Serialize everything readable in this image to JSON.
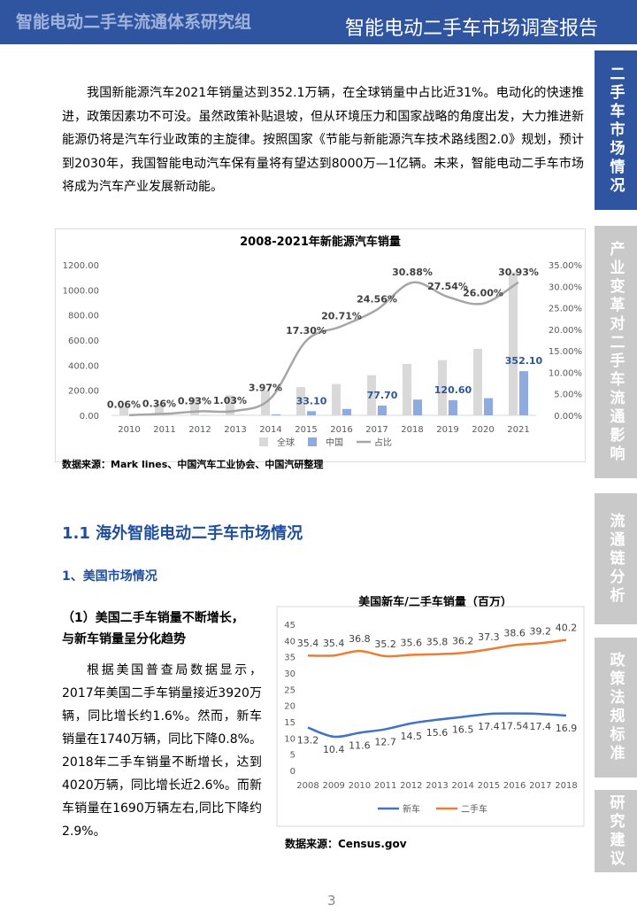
{
  "header": {
    "left": "智能电动二手车流通体系研究组",
    "right": "智能电动二手车市场调查报告"
  },
  "tabs": [
    "二手车市场情况",
    "产业变革对二手车流通影响",
    "流通链分析",
    "政策法规标准",
    "研究建议"
  ],
  "intro": "我国新能源汽车2021年销量达到352.1万辆，在全球销量中占比近31%。电动化的快速推进，政策因素功不可没。虽然政策补贴退坡，但从环境压力和国家战略的角度出发，大力推进新能源仍将是汽车行业政策的主旋律。按照国家《节能与新能源汽车技术路线图2.0》规划，预计到2030年，我国智能电动汽车保有量将有望达到8000万—1亿辆。未来，智能电动二手车市场将成为汽车产业发展新动能。",
  "source1": "数据来源：Mark lines、中国汽车工业协会、中国汽研整理",
  "section": "1.1 海外智能电动二手车市场情况",
  "subsection": "1、美国市场情况",
  "point": "（1）美国二手车销量不断增长，与新车销量呈分化趋势",
  "body": "根据美国普查局数据显示，2017年美国二手车销量接近3920万辆，同比增长约1.6%。然而，新车销量在1740万辆，同比下降0.8%。2018年二手车销量不断增长，达到4020万辆，同比增长近2.6%。而新车销量在1690万辆左右,同比下降约2.9%。",
  "source2": "数据来源：Census.gov",
  "page": "3",
  "chart_data": [
    {
      "type": "bar-line",
      "title": "2008-2021年新能源汽车销量",
      "categories": [
        "2010",
        "2011",
        "2012",
        "2013",
        "2014",
        "2015",
        "2016",
        "2017",
        "2018",
        "2019",
        "2020",
        "2021"
      ],
      "series": [
        {
          "name": "全球",
          "color": "#d9d9d9",
          "values": [
            70,
            90,
            140,
            160,
            200,
            225,
            250,
            320,
            410,
            440,
            530,
            1140
          ]
        },
        {
          "name": "中国",
          "color": "#8faadc",
          "values": [
            0.5,
            0.8,
            1.3,
            1.8,
            7.5,
            33.1,
            50.7,
            77.7,
            125.6,
            120.6,
            136.7,
            352.1
          ],
          "value_labels": [
            null,
            null,
            null,
            null,
            null,
            "33.10",
            null,
            "77.70",
            null,
            "120.60",
            null,
            "352.10"
          ]
        },
        {
          "name": "占比",
          "color": "#a6a6a6",
          "axis": "y2",
          "values": [
            0.06,
            0.36,
            0.93,
            1.03,
            3.97,
            17.3,
            20.71,
            24.56,
            30.88,
            27.54,
            26.0,
            30.93
          ],
          "value_labels": [
            "0.06%",
            "0.36%",
            "0.93%",
            "1.03%",
            "3.97%",
            "17.30%",
            "20.71%",
            "24.56%",
            "30.88%",
            "27.54%",
            "26.00%",
            "30.93%"
          ]
        }
      ],
      "ylim": [
        0,
        1200
      ],
      "yticks": [
        {
          "value": 0,
          "label": "0.00"
        },
        {
          "value": 200,
          "label": "200.00"
        },
        {
          "value": 400,
          "label": "400.00"
        },
        {
          "value": 600,
          "label": "600.00"
        },
        {
          "value": 800,
          "label": "800.00"
        },
        {
          "value": 1000,
          "label": "1000.00"
        },
        {
          "value": 1200,
          "label": "1200.00"
        }
      ],
      "y2lim": [
        0,
        35
      ],
      "y2ticks": [
        {
          "value": 0,
          "label": "0.00%"
        },
        {
          "value": 5,
          "label": "5.00%"
        },
        {
          "value": 10,
          "label": "10.00%"
        },
        {
          "value": 15,
          "label": "15.00%"
        },
        {
          "value": 20,
          "label": "20.00%"
        },
        {
          "value": 25,
          "label": "25.00%"
        },
        {
          "value": 30,
          "label": "30.00%"
        },
        {
          "value": 35,
          "label": "35.00%"
        }
      ]
    },
    {
      "type": "line",
      "title": "美国新车/二手车销量（百万）",
      "categories": [
        "2008",
        "2009",
        "2010",
        "2011",
        "2012",
        "2013",
        "2014",
        "2015",
        "2016",
        "2017",
        "2018"
      ],
      "series": [
        {
          "name": "新车",
          "color": "#4472c4",
          "values": [
            13.2,
            10.4,
            11.6,
            12.7,
            14.5,
            15.6,
            16.5,
            17.4,
            17.54,
            17.4,
            16.9
          ]
        },
        {
          "name": "二手车",
          "color": "#ed7d31",
          "values": [
            35.4,
            35.4,
            36.8,
            35.2,
            35.6,
            35.8,
            36.2,
            37.3,
            38.6,
            39.2,
            40.2
          ]
        }
      ],
      "ylim": [
        0,
        45
      ],
      "yticks": [
        0,
        5,
        10,
        15,
        20,
        25,
        30,
        35,
        40,
        45
      ],
      "grid": false
    }
  ]
}
